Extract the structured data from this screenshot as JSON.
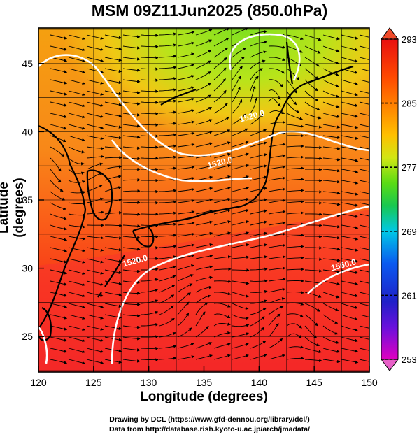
{
  "title": "MSM 09Z11Jun2025 (850.0hPa)",
  "axes": {
    "xlabel": "Longitude (degrees)",
    "ylabel": "Latitude  (degrees)",
    "x_ticks": [
      "120",
      "125",
      "130",
      "135",
      "140",
      "145",
      "150"
    ],
    "y_ticks": [
      "25",
      "30",
      "35",
      "40",
      "45"
    ],
    "x_range": [
      120,
      150
    ],
    "y_range": [
      22.4,
      47.6
    ]
  },
  "colorbar": {
    "labels": [
      "293",
      "285",
      "277",
      "269",
      "261",
      "253"
    ],
    "range": [
      253,
      293
    ],
    "colors": [
      "#d400c8",
      "#4a1adc",
      "#0a5af0",
      "#00c8e6",
      "#18c850",
      "#66dc14",
      "#c8e614",
      "#ffb400",
      "#ff6e00",
      "#ff1a00",
      "#e81010"
    ]
  },
  "contour_labels": [
    {
      "text": "1520.0",
      "lon": 138.3,
      "lat": 40.7
    },
    {
      "text": "1520.0",
      "lon": 135.4,
      "lat": 37.3
    },
    {
      "text": "1520.0",
      "lon": 127.7,
      "lat": 30.1
    },
    {
      "text": "1560.0",
      "lon": 146.6,
      "lat": 29.8
    }
  ],
  "credits": {
    "line1": "Drawing by DCL (https://www.gfd-dennou.org/library/dcl/)",
    "line2": "Data from http://database.rish.kyoto-u.ac.jp/arch/jmadata/"
  }
}
